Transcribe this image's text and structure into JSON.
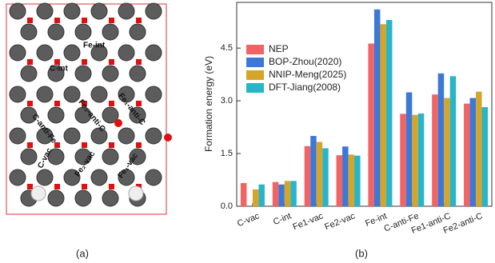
{
  "panel_a": {
    "labels": [
      "Fe-int",
      "C-int",
      "C-anti-Fe",
      "Fe₂-anti-C",
      "Fe₁-anti-C",
      "C-vac",
      "Fe₂-vac",
      "Fe₁-vac"
    ],
    "caption": "(a)"
  },
  "panel_b": {
    "caption": "(b)"
  },
  "chart_data": {
    "type": "bar",
    "ylabel": "Formation energy (eV)",
    "categories": [
      "C-vac",
      "C-int",
      "Fe1-vac",
      "Fe2-vac",
      "Fe-int",
      "C-anti-Fe",
      "Fe1-anti-C",
      "Fe2-anti-C"
    ],
    "series": [
      {
        "name": "NEP",
        "color": "#f06464",
        "values": [
          0.66,
          0.69,
          1.71,
          1.45,
          4.63,
          2.63,
          3.18,
          2.92
        ]
      },
      {
        "name": "BOP-Zhou(2020)",
        "color": "#3c78d8",
        "values": [
          null,
          0.62,
          2.0,
          1.7,
          5.6,
          3.24,
          3.78,
          3.08
        ]
      },
      {
        "name": "NNIP-Meng(2025)",
        "color": "#d4a52a",
        "values": [
          0.48,
          0.72,
          1.83,
          1.47,
          5.18,
          2.6,
          3.08,
          3.26
        ]
      },
      {
        "name": "DFT-Jiang(2008)",
        "color": "#2ab4c8",
        "values": [
          0.62,
          0.72,
          1.65,
          1.44,
          5.3,
          2.64,
          3.7,
          2.82
        ]
      }
    ],
    "ylim": [
      0,
      5.8
    ],
    "yticks": [
      {
        "value": 0,
        "label": "0.0"
      },
      1.5,
      {
        "value": 3,
        "label": "3.0"
      },
      4.5
    ],
    "legend": "upper-left"
  }
}
